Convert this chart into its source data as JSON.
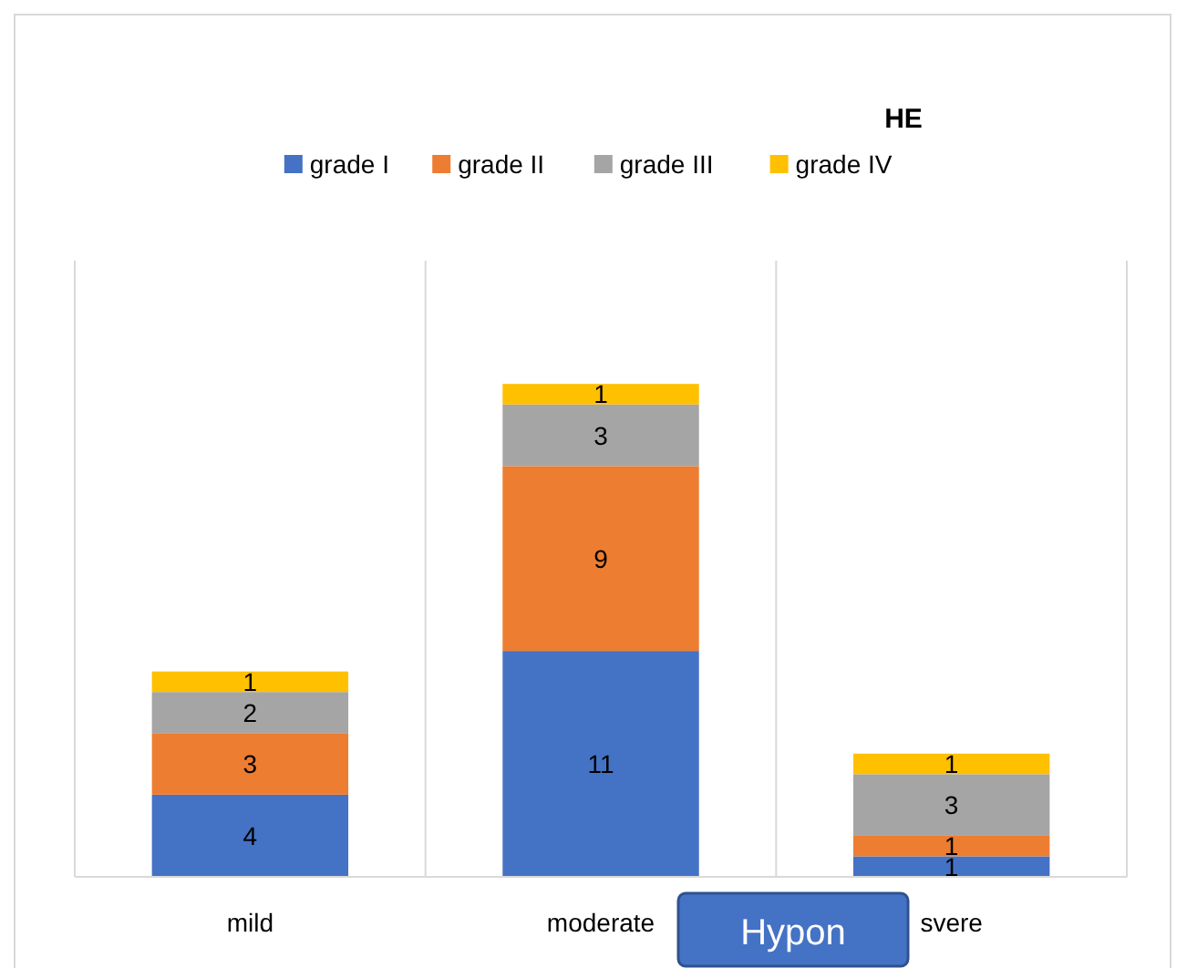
{
  "chart_data": {
    "type": "bar",
    "title": "HE",
    "categories": [
      "mild",
      "moderate",
      "svere"
    ],
    "stacked": true,
    "data_labels": true,
    "grid": "x",
    "legend": "top",
    "series": [
      {
        "name": "grade I",
        "color": "#4472c4",
        "values": [
          4,
          11,
          1
        ]
      },
      {
        "name": "grade II",
        "color": "#ed7d31",
        "values": [
          3,
          9,
          1
        ]
      },
      {
        "name": "grade III",
        "color": "#a5a5a5",
        "values": [
          2,
          3,
          3
        ]
      },
      {
        "name": "grade IV",
        "color": "#ffc000",
        "values": [
          1,
          1,
          1
        ]
      }
    ],
    "annotations": [
      "Hypon"
    ]
  }
}
